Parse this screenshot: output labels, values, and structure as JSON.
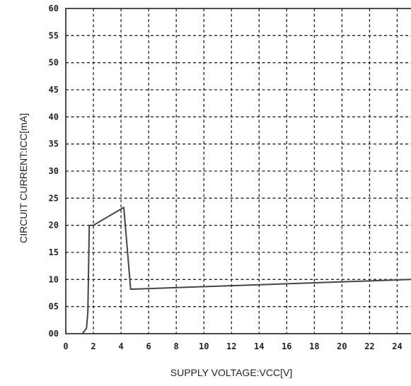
{
  "chart_data": {
    "type": "line",
    "xlabel": "SUPPLY VOLTAGE:VCC[V]",
    "ylabel": "CIRCUIT CURRENT:ICC[mA]",
    "xlim": [
      0,
      25
    ],
    "ylim": [
      0,
      60
    ],
    "x_ticks": [
      0,
      2,
      4,
      6,
      8,
      10,
      12,
      14,
      16,
      18,
      20,
      22,
      24
    ],
    "x_tick_labels": [
      "0",
      "2",
      "4",
      "6",
      "8",
      "10",
      "12",
      "14",
      "16",
      "18",
      "20",
      "22",
      "24"
    ],
    "y_ticks": [
      0,
      5,
      10,
      15,
      20,
      25,
      30,
      35,
      40,
      45,
      50,
      55,
      60
    ],
    "y_tick_labels": [
      "00",
      "05",
      "10",
      "15",
      "20",
      "25",
      "30",
      "35",
      "40",
      "45",
      "50",
      "55",
      "60"
    ],
    "grid": true,
    "series": [
      {
        "x": [
          1.2,
          1.5,
          1.6,
          1.65,
          1.7,
          2.0,
          4.2,
          4.7,
          25
        ],
        "y": [
          0,
          1,
          4,
          12,
          20,
          20,
          23.3,
          8.2,
          10
        ]
      }
    ],
    "colors": {
      "line": "#444444",
      "grid": "#222222",
      "frame": "#222222"
    }
  }
}
